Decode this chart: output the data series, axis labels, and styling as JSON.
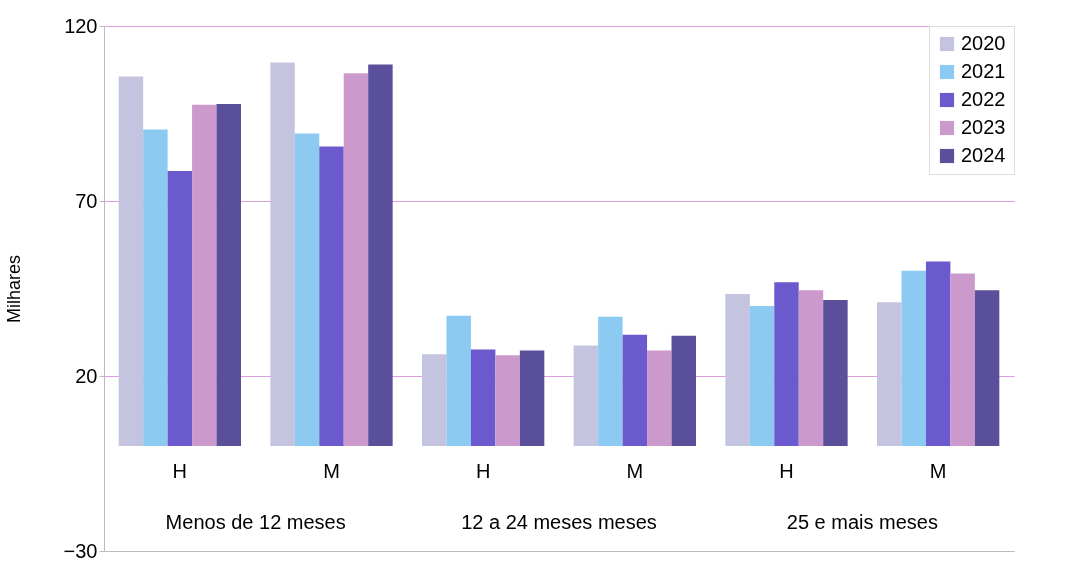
{
  "chart_data": {
    "type": "bar",
    "ylabel": "Milhares",
    "categories": [
      "H",
      "M",
      "H",
      "M",
      "H",
      "M"
    ],
    "series": [
      {
        "name": "2020",
        "color": "#c4c4e0",
        "values": [
          105.6,
          109.6,
          26.2,
          28.7,
          43.4,
          41.1
        ]
      },
      {
        "name": "2021",
        "color": "#8ccaf2",
        "values": [
          90.4,
          89.3,
          37.2,
          36.9,
          40.0,
          50.1
        ]
      },
      {
        "name": "2022",
        "color": "#6a5acd",
        "values": [
          78.6,
          85.6,
          27.6,
          31.8,
          46.8,
          52.7
        ]
      },
      {
        "name": "2023",
        "color": "#cc99cc",
        "values": [
          97.5,
          106.5,
          25.9,
          27.3,
          44.5,
          49.3
        ]
      },
      {
        "name": "2024",
        "color": "#5a4f9a",
        "values": [
          97.7,
          109.0,
          27.3,
          31.5,
          41.7,
          44.5
        ]
      }
    ],
    "annotations": [
      "Menos de 12 meses",
      "12 a 24 meses meses",
      "25 e mais meses"
    ],
    "ylim": [
      -30,
      120
    ],
    "yticks": [
      -30,
      20,
      70,
      120
    ],
    "grid": "y",
    "legend": "top right"
  }
}
